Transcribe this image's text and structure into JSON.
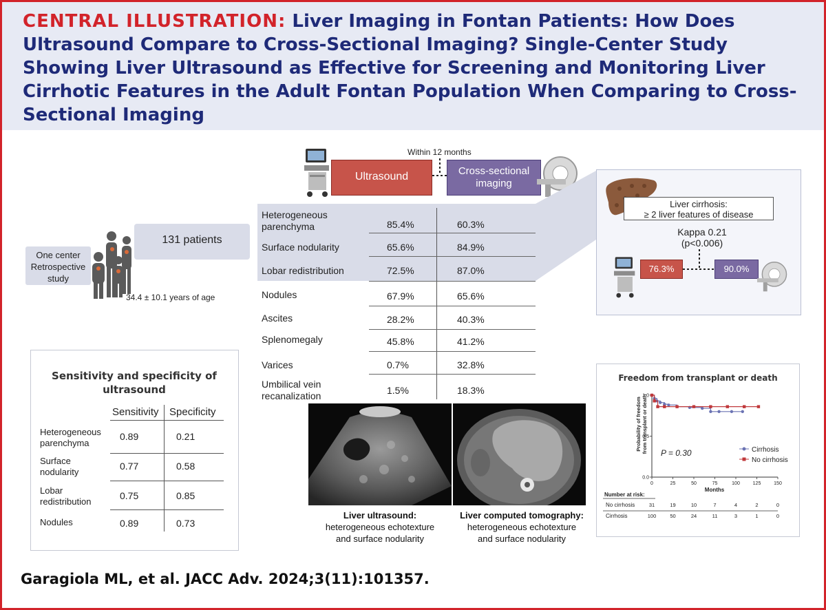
{
  "header": {
    "prefix": "CENTRAL ILLUSTRATION:",
    "title": "Liver Imaging in Fontan Patients: How Does Ultrasound Compare to Cross-Sectional Imaging? Single-Center Study Showing Liver Ultrasound as Effective for Screening and Monitoring Liver Cirrhotic Features in the Adult Fontan Population When Comparing to Cross-Sectional Imaging"
  },
  "study": {
    "center_line1": "One center",
    "center_line2": "Retrospective",
    "center_line3": "study",
    "patients": "131 patients",
    "age": "34.4 ± 10.1 years of age"
  },
  "comparison": {
    "within": "Within 12 months",
    "ultrasound": "Ultrasound",
    "cross_sectional_1": "Cross-sectional",
    "cross_sectional_2": "imaging",
    "rows": [
      {
        "label": "Heterogeneous parenchyma",
        "us": "85.4%",
        "cs": "60.3%"
      },
      {
        "label": "Surface nodularity",
        "us": "65.6%",
        "cs": "84.9%"
      },
      {
        "label": "Lobar redistribution",
        "us": "72.5%",
        "cs": "87.0%"
      },
      {
        "label": "Nodules",
        "us": "67.9%",
        "cs": "65.6%"
      },
      {
        "label": "Ascites",
        "us": "28.2%",
        "cs": "40.3%"
      },
      {
        "label": "Splenomegaly",
        "us": "45.8%",
        "cs": "41.2%"
      },
      {
        "label": "Varices",
        "us": "0.7%",
        "cs": "32.8%"
      },
      {
        "label": "Umbilical vein recanalization",
        "us": "1.5%",
        "cs": "18.3%"
      }
    ]
  },
  "cirrhosis": {
    "line1": "Liver cirrhosis:",
    "line2": "≥ 2 liver features of disease",
    "kappa": "Kappa 0.21",
    "p": "(p<0.006)",
    "us_pct": "76.3%",
    "cs_pct": "90.0%"
  },
  "sensitivity": {
    "title": "Sensitivity and specificity of ultrasound",
    "col_sens": "Sensitivity",
    "col_spec": "Specificity",
    "rows": [
      {
        "label": "Heterogeneous parenchyma",
        "sens": "0.89",
        "spec": "0.21"
      },
      {
        "label": "Surface nodularity",
        "sens": "0.77",
        "spec": "0.58"
      },
      {
        "label": "Lobar redistribution",
        "sens": "0.75",
        "spec": "0.85"
      },
      {
        "label": "Nodules",
        "sens": "0.89",
        "spec": "0.73"
      }
    ]
  },
  "images": {
    "us_title": "Liver ultrasound:",
    "us_desc1": "heterogeneous echotexture",
    "us_desc2": "and surface nodularity",
    "ct_title": "Liver computed tomography:",
    "ct_desc1": "heterogeneous echotexture",
    "ct_desc2": "and surface nodularity"
  },
  "chart_data": {
    "type": "line",
    "title": "Freedom from transplant or death",
    "xlabel": "Months",
    "ylabel": "Probability of freedom from transplant or death",
    "xlim": [
      0,
      150
    ],
    "ylim": [
      0,
      1
    ],
    "x_ticks": [
      "0",
      "25",
      "50",
      "75",
      "100",
      "125",
      "150"
    ],
    "y_ticks": [
      "0.0",
      "0.5",
      "1.0"
    ],
    "annotation": "P = 0.30",
    "legend_position": "right",
    "series": [
      {
        "name": "Cirrhosis",
        "color": "#6b73b3",
        "marker": "circle",
        "points": [
          [
            0,
            1.0
          ],
          [
            3,
            0.96
          ],
          [
            6,
            0.93
          ],
          [
            10,
            0.91
          ],
          [
            15,
            0.89
          ],
          [
            20,
            0.88
          ],
          [
            30,
            0.86
          ],
          [
            45,
            0.85
          ],
          [
            60,
            0.84
          ],
          [
            70,
            0.8
          ],
          [
            80,
            0.8
          ],
          [
            95,
            0.8
          ],
          [
            108,
            0.8
          ]
        ]
      },
      {
        "name": "No cirrhosis",
        "color": "#c0393b",
        "marker": "square",
        "points": [
          [
            0,
            1.0
          ],
          [
            3,
            0.93
          ],
          [
            7,
            0.86
          ],
          [
            15,
            0.86
          ],
          [
            30,
            0.86
          ],
          [
            50,
            0.86
          ],
          [
            70,
            0.86
          ],
          [
            90,
            0.86
          ],
          [
            110,
            0.86
          ],
          [
            127,
            0.86
          ]
        ]
      }
    ],
    "risk_table": {
      "header": "Number at risk:",
      "rows": [
        {
          "label": "No cirrhosis",
          "values": [
            "31",
            "19",
            "10",
            "7",
            "4",
            "2",
            "0"
          ]
        },
        {
          "label": "Cirrhosis",
          "values": [
            "100",
            "50",
            "24",
            "11",
            "3",
            "1",
            "0"
          ]
        }
      ]
    }
  },
  "citation": "Garagiola ML, et al. JACC Adv. 2024;3(11):101357."
}
